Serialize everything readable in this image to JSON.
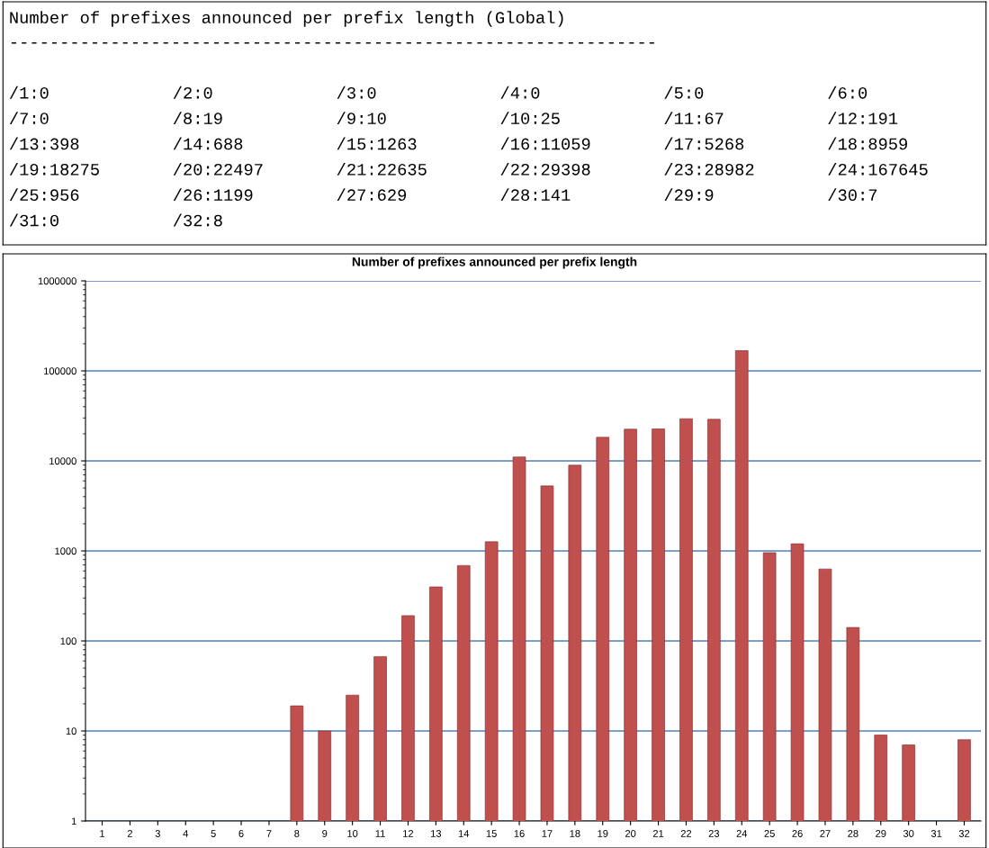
{
  "chart_data": [
    {
      "type": "other",
      "title": "Number of prefixes announced per prefix length (Global)",
      "subtitle": "----------------------------------------------------------------",
      "annotations": [
        "/1:0",
        "/2:0",
        "/3:0",
        "/4:0",
        "/5:0",
        "/6:0",
        "/7:0",
        "/8:19",
        "/9:10",
        "/10:25",
        "/11:67",
        "/12:191",
        "/13:398",
        "/14:688",
        "/15:1263",
        "/16:11059",
        "/17:5268",
        "/18:8959",
        "/19:18275",
        "/20:22497",
        "/21:22635",
        "/22:29398",
        "/23:28982",
        "/24:167645",
        "/25:956",
        "/26:1199",
        "/27:629",
        "/28:141",
        "/29:9",
        "/30:7",
        "/31:0",
        "/32:8"
      ]
    },
    {
      "type": "bar",
      "title": "Number of prefixes announced per prefix length",
      "categories": [
        "1",
        "2",
        "3",
        "4",
        "5",
        "6",
        "7",
        "8",
        "9",
        "10",
        "11",
        "12",
        "13",
        "14",
        "15",
        "16",
        "17",
        "18",
        "19",
        "20",
        "21",
        "22",
        "23",
        "24",
        "25",
        "26",
        "27",
        "28",
        "29",
        "30",
        "31",
        "32"
      ],
      "values": [
        null,
        null,
        null,
        null,
        null,
        null,
        null,
        19,
        10,
        25,
        67,
        191,
        398,
        688,
        1263,
        11059,
        5268,
        8959,
        18275,
        22497,
        22635,
        29398,
        28982,
        167645,
        956,
        1199,
        629,
        141,
        9,
        7,
        null,
        8
      ],
      "color": "#c0504d",
      "log": true,
      "ylim": [
        1,
        1000000
      ],
      "yticks": [
        1,
        10,
        100,
        1000,
        10000,
        100000,
        1000000
      ],
      "grid": "y"
    }
  ]
}
